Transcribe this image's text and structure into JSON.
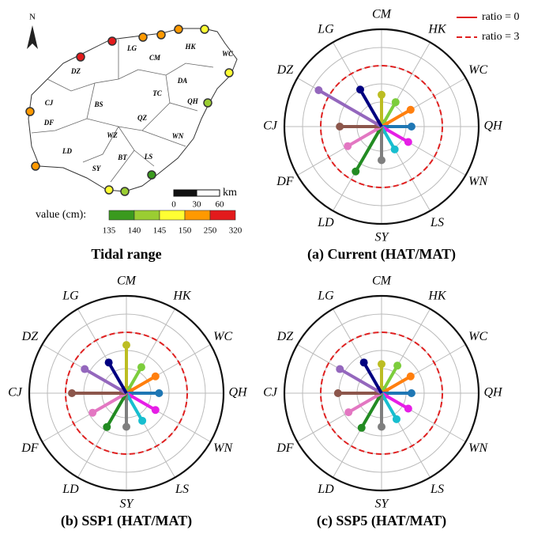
{
  "map": {
    "caption": "Tidal range",
    "north": "N",
    "regions": [
      "LG",
      "CM",
      "HK",
      "WC",
      "DZ",
      "DA",
      "TC",
      "QH",
      "CJ",
      "BS",
      "QZ",
      "DF",
      "WN",
      "LD",
      "WZ",
      "BT",
      "LS",
      "SY"
    ],
    "scale": {
      "ticks": [
        0,
        30,
        60
      ],
      "unit": "km"
    },
    "colorbar": {
      "label": "value (cm):",
      "ticks": [
        135,
        140,
        145,
        150,
        250,
        320
      ],
      "colors": [
        "#3a9a1e",
        "#9acd32",
        "#ffff33",
        "#ff9900",
        "#e31a1c"
      ]
    }
  },
  "chart_data": [
    {
      "type": "polar-lollipop",
      "title": "(a) Current (HAT/MAT)",
      "categories": [
        "CM",
        "HK",
        "WC",
        "QH",
        "WN",
        "LS",
        "SY",
        "LD",
        "DF",
        "CJ",
        "DZ",
        "LG"
      ],
      "values": [
        1.4,
        1.2,
        1.5,
        1.3,
        1.35,
        1.1,
        1.5,
        2.5,
        1.8,
        1.95,
        3.65,
        2.0
      ],
      "colors": [
        "#bcbd22",
        "#7ccd3c",
        "#ff7f0e",
        "#1f77b4",
        "#e61ee6",
        "#17becf",
        "#7f7f7f",
        "#228b22",
        "#e377c2",
        "#8c564b",
        "#9467bd",
        "#000080"
      ],
      "rlim": [
        0,
        5
      ],
      "rticks": [
        1,
        2,
        3,
        4
      ],
      "reference_lines": [
        {
          "name": "ratio = 0",
          "value": 0,
          "style": "solid",
          "color": "#e02020"
        },
        {
          "name": "ratio = 3",
          "value": 3,
          "style": "dashed",
          "color": "#e02020"
        }
      ]
    },
    {
      "type": "polar-lollipop",
      "title": "(b) SSP1 (HAT/MAT)",
      "categories": [
        "CM",
        "HK",
        "WC",
        "QH",
        "WN",
        "LS",
        "SY",
        "LD",
        "DF",
        "CJ",
        "DZ",
        "LG"
      ],
      "values": [
        2.3,
        1.3,
        1.5,
        1.45,
        1.5,
        1.4,
        1.5,
        1.8,
        1.8,
        2.65,
        2.3,
        1.6
      ],
      "colors": [
        "#bcbd22",
        "#7ccd3c",
        "#ff7f0e",
        "#1f77b4",
        "#e61ee6",
        "#17becf",
        "#7f7f7f",
        "#228b22",
        "#e377c2",
        "#8c564b",
        "#9467bd",
        "#000080"
      ],
      "rlim": [
        0,
        5
      ],
      "rticks": [
        1,
        2,
        3,
        4
      ],
      "reference_lines": [
        {
          "value": 0,
          "style": "solid",
          "color": "#e02020"
        },
        {
          "value": 3,
          "style": "dashed",
          "color": "#e02020"
        }
      ]
    },
    {
      "type": "polar-lollipop",
      "title": "(c) SSP5 (HAT/MAT)",
      "categories": [
        "CM",
        "HK",
        "WC",
        "QH",
        "WN",
        "LS",
        "SY",
        "LD",
        "DF",
        "CJ",
        "DZ",
        "LG"
      ],
      "values": [
        1.25,
        1.4,
        1.5,
        1.3,
        1.35,
        1.3,
        1.5,
        1.85,
        1.75,
        2.05,
        2.3,
        1.6
      ],
      "colors": [
        "#bcbd22",
        "#7ccd3c",
        "#ff7f0e",
        "#1f77b4",
        "#e61ee6",
        "#17becf",
        "#7f7f7f",
        "#228b22",
        "#e377c2",
        "#8c564b",
        "#9467bd",
        "#000080"
      ],
      "rlim": [
        0,
        5
      ],
      "rticks": [
        1,
        2,
        3,
        4
      ],
      "reference_lines": [
        {
          "value": 0,
          "style": "solid",
          "color": "#e02020"
        },
        {
          "value": 3,
          "style": "dashed",
          "color": "#e02020"
        }
      ]
    }
  ]
}
